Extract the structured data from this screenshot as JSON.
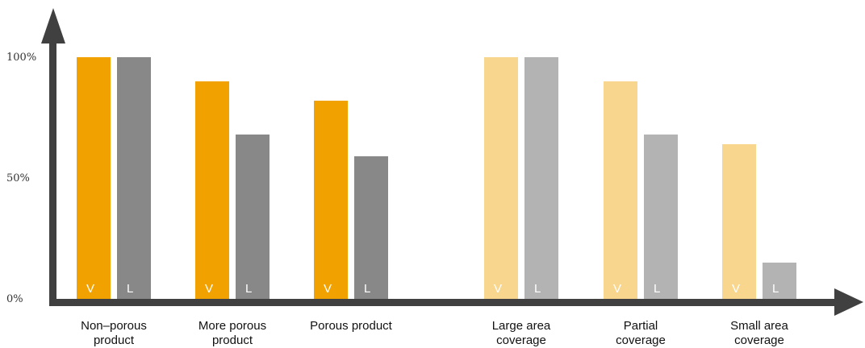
{
  "chart_data": {
    "type": "bar",
    "title": "",
    "xlabel": "",
    "ylabel": "",
    "ylim": [
      0,
      100
    ],
    "yticks": [
      {
        "value": 0,
        "label": "0%"
      },
      {
        "value": 50,
        "label": "50%"
      },
      {
        "value": 100,
        "label": "100%"
      }
    ],
    "grid": false,
    "legend": "none",
    "categories": [
      [
        "Non–porous",
        "product"
      ],
      [
        "More porous",
        "product"
      ],
      [
        "Porous product"
      ],
      [
        "Large area",
        "coverage"
      ],
      [
        "Partial",
        "coverage"
      ],
      [
        "Small area",
        "coverage"
      ]
    ],
    "series": [
      {
        "bar_label": "V",
        "values": [
          100,
          90,
          82,
          100,
          90,
          64
        ]
      },
      {
        "bar_label": "L",
        "values": [
          100,
          68,
          59,
          100,
          68,
          15
        ]
      }
    ],
    "colors": {
      "axis": "#404040",
      "v_dark": "#F2A200",
      "l_dark": "#888888",
      "v_light": "#F9D68E",
      "l_light": "#B3B3B3",
      "bar_label": "#ffffff"
    }
  }
}
